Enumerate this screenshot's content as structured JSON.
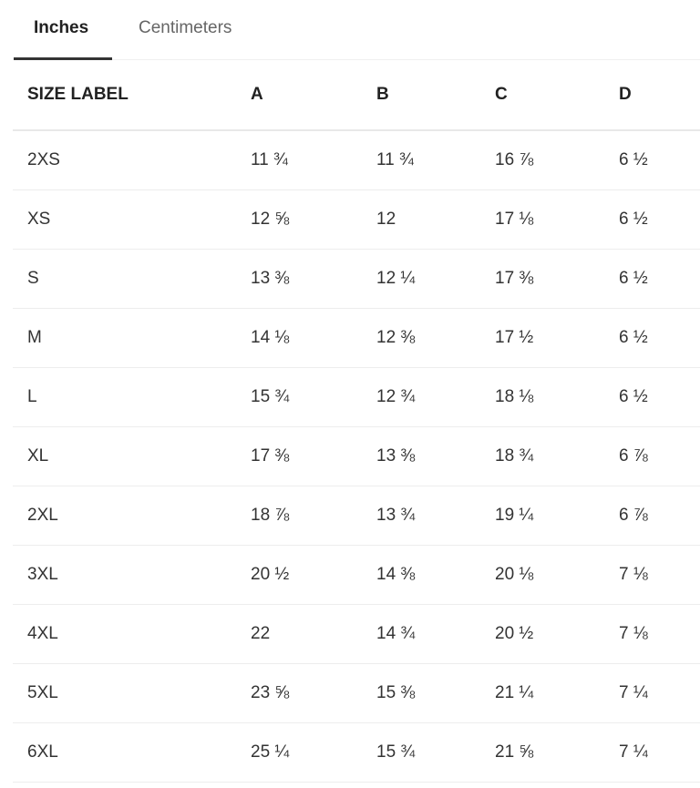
{
  "tabs": {
    "inches_label": "Inches",
    "centimeters_label": "Centimeters",
    "active": "Inches"
  },
  "table": {
    "headers": [
      "SIZE LABEL",
      "A",
      "B",
      "C",
      "D"
    ],
    "rows": [
      [
        "2XS",
        "11 ¾",
        "11 ¾",
        "16 ⅞",
        "6 ½"
      ],
      [
        "XS",
        "12 ⅝",
        "12",
        "17 ⅛",
        "6 ½"
      ],
      [
        "S",
        "13 ⅜",
        "12 ¼",
        "17 ⅜",
        "6 ½"
      ],
      [
        "M",
        "14 ⅛",
        "12 ⅜",
        "17 ½",
        "6 ½"
      ],
      [
        "L",
        "15 ¾",
        "12 ¾",
        "18 ⅛",
        "6 ½"
      ],
      [
        "XL",
        "17 ⅜",
        "13 ⅜",
        "18 ¾",
        "6 ⅞"
      ],
      [
        "2XL",
        "18 ⅞",
        "13 ¾",
        "19 ¼",
        "6 ⅞"
      ],
      [
        "3XL",
        "20 ½",
        "14 ⅜",
        "20 ⅛",
        "7 ⅛"
      ],
      [
        "4XL",
        "22",
        "14 ¾",
        "20 ½",
        "7 ⅛"
      ],
      [
        "5XL",
        "23 ⅝",
        "15 ⅜",
        "21 ¼",
        "7 ¼"
      ],
      [
        "6XL",
        "25 ¼",
        "15 ¾",
        "21 ⅝",
        "7 ¼"
      ]
    ]
  }
}
